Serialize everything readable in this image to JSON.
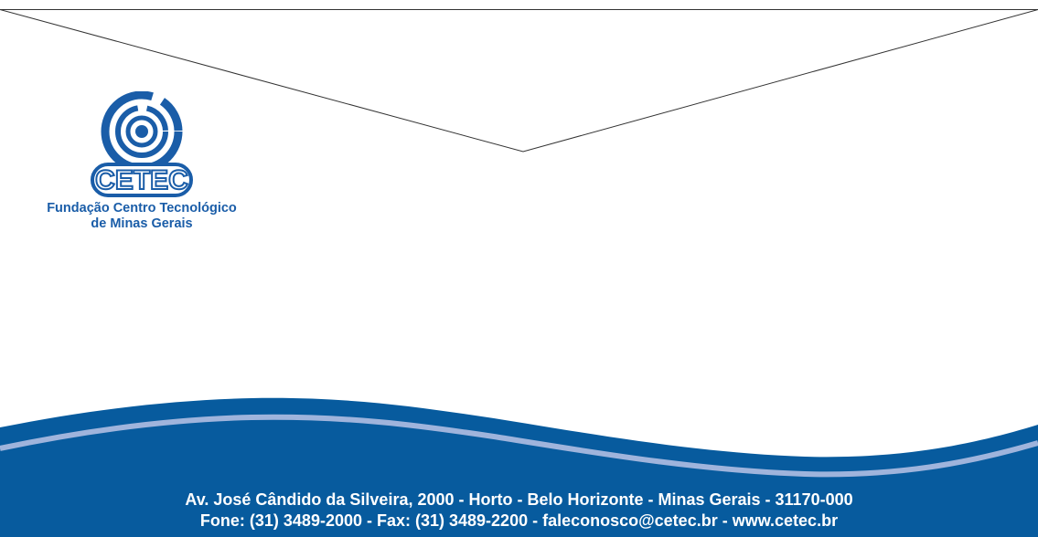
{
  "logo": {
    "org_name_line1": "Fundação Centro Tecnológico",
    "org_name_line2": "de Minas Gerais",
    "wordmark": "CETEC"
  },
  "footer": {
    "address": "Av. José Cândido da Silveira, 2000 - Horto - Belo Horizonte - Minas Gerais - 31170-000",
    "contact": "Fone: (31) 3489-2000 - Fax: (31) 3489-2200 - faleconosco@cetec.br - www.cetec.br"
  },
  "colors": {
    "brand_blue": "#1a5da8",
    "wave_blue": "#075b9e",
    "wave_light": "#9fb4dc",
    "flap_line": "#333333"
  }
}
